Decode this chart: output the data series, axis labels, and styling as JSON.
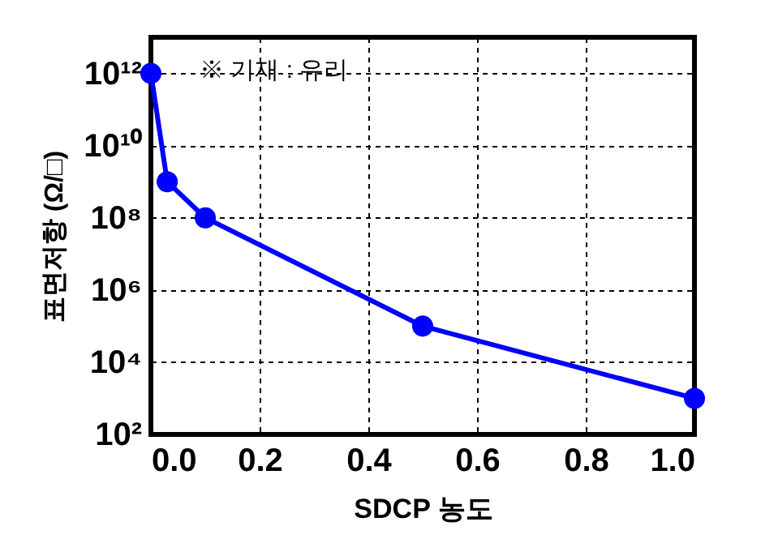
{
  "chart_data": {
    "type": "line",
    "xlabel": "SDCP 농도",
    "ylabel": "표면저항 (Ω/□)",
    "annotations": [
      "※ 기재 : 유리"
    ],
    "x": [
      0,
      0.03,
      0.1,
      0.5,
      1.0
    ],
    "series": [
      {
        "color": "#0000ff",
        "values": [
          1000000000000.0,
          1000000000.0,
          100000000.0,
          100000.0,
          1000.0
        ]
      }
    ],
    "xlim": [
      0,
      1.0
    ],
    "xticks": [
      {
        "value": 0,
        "label": "0.0"
      },
      0.2,
      0.4,
      0.6,
      0.8,
      {
        "value": 1,
        "label": "1.0"
      }
    ],
    "ylim": [
      100.0,
      10000000000000.0
    ],
    "log": "y",
    "yticks": [
      {
        "value": 100.0,
        "label": "10²"
      },
      {
        "value": 10000.0,
        "label": "10⁴"
      },
      {
        "value": 1000000.0,
        "label": "10⁶"
      },
      {
        "value": 100000000.0,
        "label": "10⁸"
      },
      {
        "value": 10000000000.0,
        "label": "10¹⁰"
      },
      {
        "value": 1000000000000.0,
        "label": "10¹²"
      }
    ],
    "grid": true,
    "marker": "circle",
    "line_style": "solid"
  }
}
